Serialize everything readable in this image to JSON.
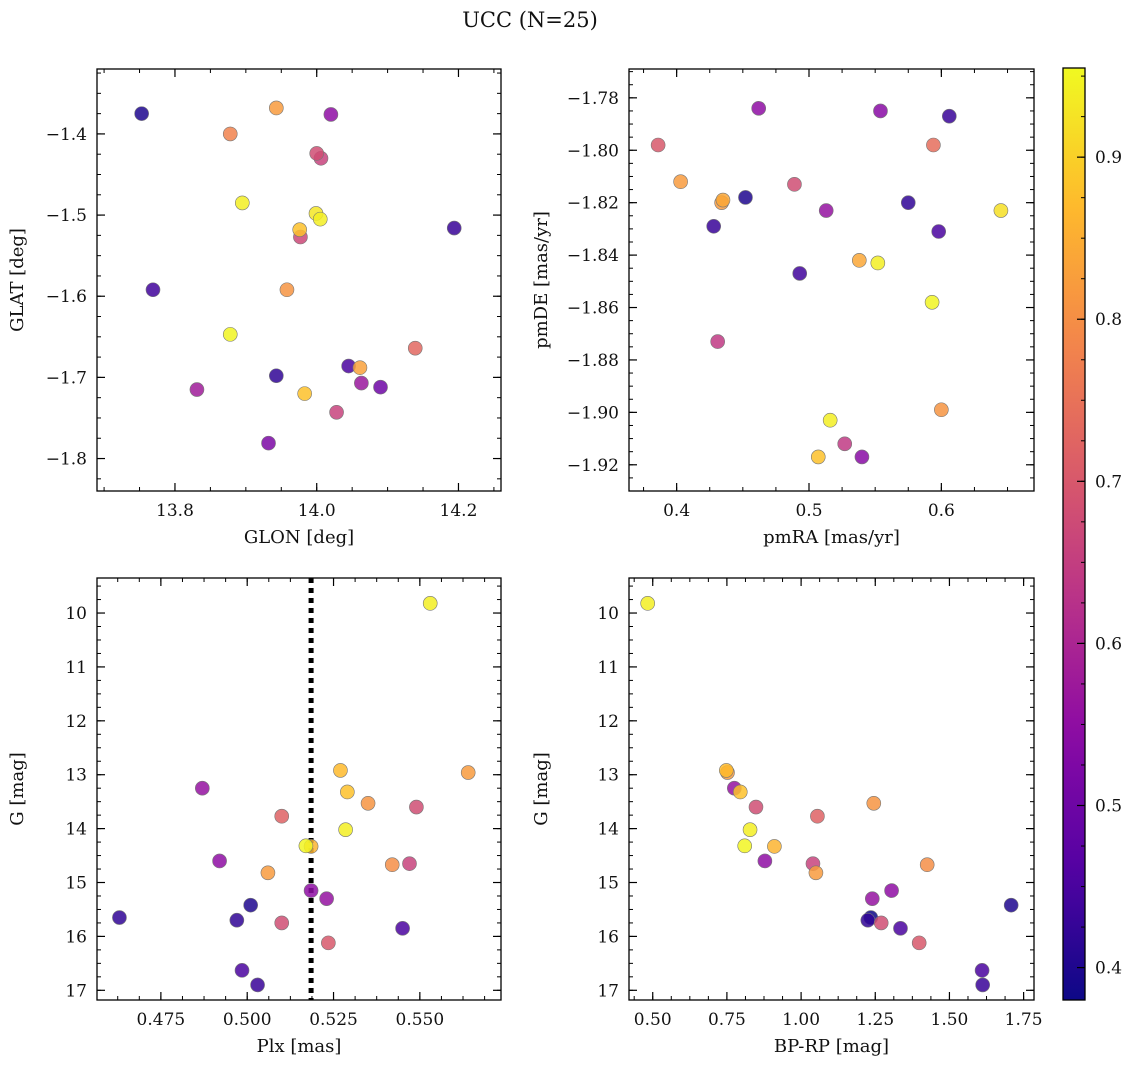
{
  "title": "UCC (N=25)",
  "colorbar": {
    "ticks": [
      0.4,
      0.5,
      0.6,
      0.7,
      0.8,
      0.9
    ],
    "range": [
      0.38,
      0.955
    ],
    "colormap": "plasma"
  },
  "chart_data": [
    {
      "type": "scatter",
      "xlabel": "GLON [deg]",
      "ylabel": "GLAT [deg]",
      "xlim": [
        13.69,
        14.26
      ],
      "ylim": [
        -1.84,
        -1.32
      ],
      "xticks": [
        13.8,
        14.0,
        14.2
      ],
      "xtick_labels": [
        "13.8",
        "14.0",
        "14.2"
      ],
      "yticks": [
        -1.4,
        -1.5,
        -1.6,
        -1.7,
        -1.8
      ],
      "ytick_labels": [
        "−1.4",
        "−1.5",
        "−1.6",
        "−1.7",
        "−1.8"
      ],
      "y_inverted": false,
      "points": [
        {
          "x": 13.753,
          "y": -1.375,
          "c": 0.4
        },
        {
          "x": 13.769,
          "y": -1.592,
          "c": 0.44
        },
        {
          "x": 13.831,
          "y": -1.715,
          "c": 0.58
        },
        {
          "x": 13.878,
          "y": -1.4,
          "c": 0.78
        },
        {
          "x": 13.878,
          "y": -1.647,
          "c": 0.95
        },
        {
          "x": 13.895,
          "y": -1.485,
          "c": 0.94
        },
        {
          "x": 13.932,
          "y": -1.781,
          "c": 0.52
        },
        {
          "x": 13.943,
          "y": -1.368,
          "c": 0.82
        },
        {
          "x": 13.943,
          "y": -1.698,
          "c": 0.42
        },
        {
          "x": 13.958,
          "y": -1.592,
          "c": 0.81
        },
        {
          "x": 13.976,
          "y": -1.518,
          "c": 0.88
        },
        {
          "x": 13.977,
          "y": -1.527,
          "c": 0.67
        },
        {
          "x": 13.983,
          "y": -1.72,
          "c": 0.88
        },
        {
          "x": 13.999,
          "y": -1.498,
          "c": 0.93
        },
        {
          "x": 14.0,
          "y": -1.424,
          "c": 0.68
        },
        {
          "x": 14.005,
          "y": -1.505,
          "c": 0.94
        },
        {
          "x": 14.006,
          "y": -1.43,
          "c": 0.66
        },
        {
          "x": 14.02,
          "y": -1.376,
          "c": 0.55
        },
        {
          "x": 14.028,
          "y": -1.743,
          "c": 0.66
        },
        {
          "x": 14.045,
          "y": -1.686,
          "c": 0.45
        },
        {
          "x": 14.061,
          "y": -1.688,
          "c": 0.83
        },
        {
          "x": 14.063,
          "y": -1.707,
          "c": 0.57
        },
        {
          "x": 14.09,
          "y": -1.712,
          "c": 0.5
        },
        {
          "x": 14.139,
          "y": -1.664,
          "c": 0.73
        },
        {
          "x": 14.194,
          "y": -1.516,
          "c": 0.43
        }
      ]
    },
    {
      "type": "scatter",
      "xlabel": "pmRA [mas/yr]",
      "ylabel": "pmDE [mas/yr]",
      "xlim": [
        0.364,
        0.67
      ],
      "ylim": [
        -1.93,
        -1.769
      ],
      "xticks": [
        0.4,
        0.5,
        0.6
      ],
      "xtick_labels": [
        "0.4",
        "0.5",
        "0.6"
      ],
      "yticks": [
        -1.78,
        -1.8,
        -1.82,
        -1.84,
        -1.86,
        -1.88,
        -1.9,
        -1.92
      ],
      "ytick_labels": [
        "−1.78",
        "−1.80",
        "−1.82",
        "−1.84",
        "−1.86",
        "−1.88",
        "−1.90",
        "−1.92"
      ],
      "y_inverted": false,
      "points": [
        {
          "x": 0.386,
          "y": -1.798,
          "c": 0.7
        },
        {
          "x": 0.403,
          "y": -1.812,
          "c": 0.82
        },
        {
          "x": 0.428,
          "y": -1.829,
          "c": 0.43
        },
        {
          "x": 0.431,
          "y": -1.873,
          "c": 0.64
        },
        {
          "x": 0.434,
          "y": -1.82,
          "c": 0.82
        },
        {
          "x": 0.435,
          "y": -1.819,
          "c": 0.84
        },
        {
          "x": 0.452,
          "y": -1.818,
          "c": 0.4
        },
        {
          "x": 0.462,
          "y": -1.784,
          "c": 0.55
        },
        {
          "x": 0.489,
          "y": -1.813,
          "c": 0.68
        },
        {
          "x": 0.493,
          "y": -1.847,
          "c": 0.44
        },
        {
          "x": 0.507,
          "y": -1.917,
          "c": 0.88
        },
        {
          "x": 0.513,
          "y": -1.823,
          "c": 0.56
        },
        {
          "x": 0.516,
          "y": -1.903,
          "c": 0.94
        },
        {
          "x": 0.527,
          "y": -1.912,
          "c": 0.64
        },
        {
          "x": 0.538,
          "y": -1.842,
          "c": 0.84
        },
        {
          "x": 0.54,
          "y": -1.917,
          "c": 0.54
        },
        {
          "x": 0.552,
          "y": -1.843,
          "c": 0.94
        },
        {
          "x": 0.554,
          "y": -1.785,
          "c": 0.54
        },
        {
          "x": 0.575,
          "y": -1.82,
          "c": 0.42
        },
        {
          "x": 0.593,
          "y": -1.858,
          "c": 0.95
        },
        {
          "x": 0.594,
          "y": -1.798,
          "c": 0.74
        },
        {
          "x": 0.598,
          "y": -1.831,
          "c": 0.45
        },
        {
          "x": 0.6,
          "y": -1.899,
          "c": 0.81
        },
        {
          "x": 0.606,
          "y": -1.787,
          "c": 0.43
        },
        {
          "x": 0.645,
          "y": -1.823,
          "c": 0.92
        }
      ]
    },
    {
      "type": "scatter",
      "xlabel": "Plx [mas]",
      "ylabel": "G [mag]",
      "xlim": [
        0.4565,
        0.5735
      ],
      "ylim": [
        17.18,
        9.35
      ],
      "xticks": [
        0.475,
        0.5,
        0.525,
        0.55
      ],
      "xtick_labels": [
        "0.475",
        "0.500",
        "0.525",
        "0.550"
      ],
      "yticks": [
        10,
        11,
        12,
        13,
        14,
        15,
        16,
        17
      ],
      "ytick_labels": [
        "10",
        "11",
        "12",
        "13",
        "14",
        "15",
        "16",
        "17"
      ],
      "y_inverted": true,
      "vline_x": 0.5185,
      "points": [
        {
          "x": 0.463,
          "y": 15.65,
          "c": 0.42
        },
        {
          "x": 0.487,
          "y": 13.25,
          "c": 0.56
        },
        {
          "x": 0.492,
          "y": 14.6,
          "c": 0.55
        },
        {
          "x": 0.497,
          "y": 15.7,
          "c": 0.42
        },
        {
          "x": 0.4985,
          "y": 16.63,
          "c": 0.45
        },
        {
          "x": 0.501,
          "y": 15.42,
          "c": 0.4
        },
        {
          "x": 0.503,
          "y": 16.9,
          "c": 0.43
        },
        {
          "x": 0.506,
          "y": 14.82,
          "c": 0.82
        },
        {
          "x": 0.51,
          "y": 13.77,
          "c": 0.72
        },
        {
          "x": 0.51,
          "y": 15.75,
          "c": 0.68
        },
        {
          "x": 0.517,
          "y": 14.32,
          "c": 0.95
        },
        {
          "x": 0.5185,
          "y": 14.33,
          "c": 0.86
        },
        {
          "x": 0.5185,
          "y": 15.15,
          "c": 0.55
        },
        {
          "x": 0.523,
          "y": 15.3,
          "c": 0.56
        },
        {
          "x": 0.5235,
          "y": 16.12,
          "c": 0.7
        },
        {
          "x": 0.527,
          "y": 12.92,
          "c": 0.87
        },
        {
          "x": 0.5285,
          "y": 14.02,
          "c": 0.94
        },
        {
          "x": 0.529,
          "y": 13.32,
          "c": 0.88
        },
        {
          "x": 0.535,
          "y": 13.53,
          "c": 0.81
        },
        {
          "x": 0.542,
          "y": 14.67,
          "c": 0.8
        },
        {
          "x": 0.545,
          "y": 15.85,
          "c": 0.45
        },
        {
          "x": 0.547,
          "y": 14.65,
          "c": 0.66
        },
        {
          "x": 0.549,
          "y": 13.6,
          "c": 0.68
        },
        {
          "x": 0.553,
          "y": 9.82,
          "c": 0.94
        },
        {
          "x": 0.564,
          "y": 12.96,
          "c": 0.82
        }
      ]
    },
    {
      "type": "scatter",
      "xlabel": "BP-RP [mag]",
      "ylabel": "G [mag]",
      "xlim": [
        0.42,
        1.785
      ],
      "ylim": [
        17.18,
        9.35
      ],
      "xticks": [
        0.5,
        0.75,
        1.0,
        1.25,
        1.5,
        1.75
      ],
      "xtick_labels": [
        "0.50",
        "0.75",
        "1.00",
        "1.25",
        "1.50",
        "1.75"
      ],
      "yticks": [
        10,
        11,
        12,
        13,
        14,
        15,
        16,
        17
      ],
      "ytick_labels": [
        "10",
        "11",
        "12",
        "13",
        "14",
        "15",
        "16",
        "17"
      ],
      "y_inverted": true,
      "points": [
        {
          "x": 0.483,
          "y": 9.82,
          "c": 0.94
        },
        {
          "x": 0.748,
          "y": 12.92,
          "c": 0.87
        },
        {
          "x": 0.752,
          "y": 12.96,
          "c": 0.82
        },
        {
          "x": 0.775,
          "y": 13.25,
          "c": 0.56
        },
        {
          "x": 0.795,
          "y": 13.32,
          "c": 0.88
        },
        {
          "x": 0.81,
          "y": 14.32,
          "c": 0.95
        },
        {
          "x": 0.828,
          "y": 14.02,
          "c": 0.94
        },
        {
          "x": 0.848,
          "y": 13.6,
          "c": 0.68
        },
        {
          "x": 0.878,
          "y": 14.6,
          "c": 0.55
        },
        {
          "x": 0.91,
          "y": 14.33,
          "c": 0.86
        },
        {
          "x": 1.04,
          "y": 14.65,
          "c": 0.66
        },
        {
          "x": 1.05,
          "y": 14.82,
          "c": 0.82
        },
        {
          "x": 1.055,
          "y": 13.77,
          "c": 0.72
        },
        {
          "x": 1.225,
          "y": 15.7,
          "c": 0.42
        },
        {
          "x": 1.235,
          "y": 15.65,
          "c": 0.38
        },
        {
          "x": 1.24,
          "y": 15.3,
          "c": 0.56
        },
        {
          "x": 1.245,
          "y": 13.53,
          "c": 0.81
        },
        {
          "x": 1.27,
          "y": 15.75,
          "c": 0.68
        },
        {
          "x": 1.305,
          "y": 15.15,
          "c": 0.55
        },
        {
          "x": 1.335,
          "y": 15.85,
          "c": 0.45
        },
        {
          "x": 1.398,
          "y": 16.12,
          "c": 0.7
        },
        {
          "x": 1.425,
          "y": 14.67,
          "c": 0.8
        },
        {
          "x": 1.61,
          "y": 16.63,
          "c": 0.45
        },
        {
          "x": 1.612,
          "y": 16.9,
          "c": 0.43
        },
        {
          "x": 1.708,
          "y": 15.42,
          "c": 0.4
        }
      ]
    }
  ]
}
